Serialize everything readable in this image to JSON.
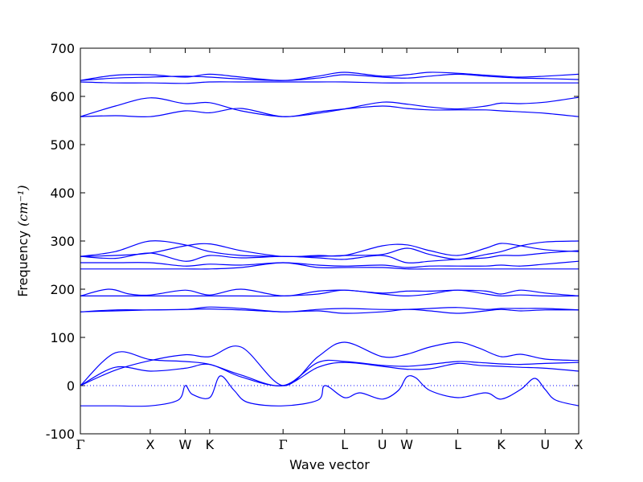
{
  "chart_data": {
    "type": "line",
    "title": "",
    "xlabel": "Wave vector",
    "ylabel": "Frequency",
    "ylabel_unit": "(cm⁻¹)",
    "ylim": [
      -100,
      700
    ],
    "yticks": [
      -100,
      0,
      100,
      200,
      300,
      400,
      500,
      600,
      700
    ],
    "grid": false,
    "legend": "none",
    "xlim": [
      0,
      7.13
    ],
    "xticks": [
      {
        "label": "Γ",
        "x": 0
      },
      {
        "label": "X",
        "x": 1.0
      },
      {
        "label": "W",
        "x": 1.5
      },
      {
        "label": "K",
        "x": 1.85
      },
      {
        "label": "Γ",
        "x": 2.9
      },
      {
        "label": "L",
        "x": 3.78
      },
      {
        "label": "U",
        "x": 4.32
      },
      {
        "label": "W",
        "x": 4.67
      },
      {
        "label": "L",
        "x": 5.4
      },
      {
        "label": "K",
        "x": 6.02
      },
      {
        "label": "U",
        "x": 6.65
      },
      {
        "label": "X",
        "x": 7.13
      }
    ],
    "reference_line": {
      "y": 0,
      "style": "dotted"
    },
    "line_color": "#0000ff",
    "bands": [
      {
        "x": [
          0,
          0.5,
          1.0,
          1.5,
          1.85,
          2.3,
          2.9,
          3.4,
          3.78,
          4.32,
          4.67,
          5.0,
          5.4,
          5.7,
          6.02,
          6.3,
          6.65,
          7.13
        ],
        "y": [
          0,
          38,
          30,
          36,
          44,
          18,
          0,
          38,
          48,
          40,
          34,
          35,
          46,
          42,
          40,
          38,
          36,
          30
        ]
      },
      {
        "x": [
          0,
          0.5,
          1.0,
          1.5,
          1.85,
          2.3,
          2.9,
          3.4,
          3.78,
          4.32,
          4.67,
          5.0,
          5.4,
          5.7,
          6.02,
          6.3,
          6.65,
          7.13
        ],
        "y": [
          0,
          68,
          54,
          50,
          44,
          22,
          0,
          48,
          50,
          42,
          40,
          44,
          50,
          48,
          45,
          44,
          46,
          48
        ]
      },
      {
        "x": [
          0,
          0.5,
          1.0,
          1.5,
          1.85,
          2.3,
          2.9,
          3.4,
          3.78,
          4.32,
          4.67,
          5.0,
          5.4,
          5.7,
          6.02,
          6.3,
          6.65,
          7.13
        ],
        "y": [
          0,
          32,
          52,
          64,
          60,
          80,
          0,
          60,
          90,
          60,
          65,
          80,
          90,
          78,
          60,
          65,
          55,
          52
        ]
      },
      {
        "x": [
          0,
          0.3,
          0.5,
          1.0,
          1.4,
          1.5,
          1.6,
          1.85,
          2.0,
          2.2,
          2.4,
          2.9,
          3.4,
          3.5,
          3.78,
          4.0,
          4.32,
          4.55,
          4.67,
          4.8,
          5.0,
          5.4,
          5.8,
          6.02,
          6.3,
          6.5,
          6.65,
          6.8,
          7.13
        ],
        "y": [
          -42,
          -42,
          -42,
          -42,
          -30,
          0,
          -18,
          -25,
          20,
          -10,
          -35,
          -42,
          -30,
          0,
          -25,
          -15,
          -28,
          -10,
          18,
          16,
          -10,
          -25,
          -15,
          -28,
          -8,
          15,
          -8,
          -30,
          -42
        ]
      },
      {
        "x": [
          0,
          0.5,
          1.0,
          1.5,
          1.85,
          2.3,
          2.9,
          3.4,
          3.78,
          4.32,
          4.67,
          5.0,
          5.4,
          5.8,
          6.02,
          6.3,
          6.65,
          7.13
        ],
        "y": [
          153,
          155,
          157,
          158,
          159,
          157,
          153,
          155,
          150,
          153,
          158,
          155,
          150,
          155,
          158,
          155,
          157,
          157
        ]
      },
      {
        "x": [
          0,
          0.5,
          1.0,
          1.5,
          1.85,
          2.3,
          2.9,
          3.4,
          3.78,
          4.32,
          4.67,
          5.0,
          5.4,
          5.8,
          6.02,
          6.3,
          6.65,
          7.13
        ],
        "y": [
          153,
          157,
          157,
          158,
          163,
          160,
          153,
          158,
          160,
          158,
          158,
          160,
          162,
          158,
          160,
          160,
          160,
          157
        ]
      },
      {
        "x": [
          0,
          0.5,
          1.0,
          1.5,
          1.85,
          2.3,
          2.9,
          3.4,
          3.78,
          4.32,
          4.67,
          5.0,
          5.4,
          5.8,
          6.02,
          6.3,
          6.65,
          7.13
        ],
        "y": [
          186,
          186,
          186,
          186,
          186,
          186,
          186,
          190,
          198,
          190,
          186,
          190,
          198,
          190,
          186,
          188,
          186,
          186
        ]
      },
      {
        "x": [
          0,
          0.4,
          0.7,
          1.0,
          1.5,
          1.85,
          2.3,
          2.9,
          3.4,
          3.78,
          4.32,
          4.67,
          5.0,
          5.4,
          5.8,
          6.02,
          6.3,
          6.65,
          7.13
        ],
        "y": [
          186,
          200,
          190,
          188,
          198,
          188,
          200,
          186,
          196,
          198,
          192,
          196,
          196,
          198,
          196,
          190,
          198,
          192,
          186
        ]
      },
      {
        "x": [
          0,
          0.5,
          1.0,
          1.5,
          1.85,
          2.3,
          2.9,
          3.4,
          3.78,
          4.32,
          4.67,
          5.0,
          5.4,
          5.8,
          6.02,
          6.3,
          6.65,
          7.13
        ],
        "y": [
          242,
          242,
          242,
          242,
          242,
          245,
          255,
          245,
          245,
          245,
          242,
          242,
          242,
          242,
          242,
          242,
          242,
          242
        ]
      },
      {
        "x": [
          0,
          0.5,
          1.0,
          1.5,
          1.85,
          2.3,
          2.9,
          3.4,
          3.78,
          4.32,
          4.67,
          5.0,
          5.4,
          5.8,
          6.02,
          6.3,
          6.65,
          7.13
        ],
        "y": [
          255,
          255,
          255,
          248,
          252,
          250,
          255,
          250,
          248,
          250,
          245,
          248,
          248,
          248,
          250,
          248,
          252,
          258
        ]
      },
      {
        "x": [
          0,
          0.5,
          1.0,
          1.5,
          1.85,
          2.3,
          2.9,
          3.4,
          3.78,
          4.32,
          4.67,
          5.0,
          5.4,
          5.8,
          6.02,
          6.3,
          6.65,
          7.13
        ],
        "y": [
          268,
          270,
          275,
          290,
          294,
          280,
          268,
          270,
          270,
          290,
          292,
          280,
          270,
          285,
          295,
          290,
          282,
          278
        ]
      },
      {
        "x": [
          0,
          0.5,
          1.0,
          1.5,
          1.85,
          2.3,
          2.9,
          3.4,
          3.78,
          4.32,
          4.67,
          5.0,
          5.4,
          5.8,
          6.02,
          6.3,
          6.65,
          7.13
        ],
        "y": [
          268,
          278,
          300,
          292,
          278,
          270,
          268,
          268,
          270,
          272,
          285,
          272,
          262,
          272,
          278,
          290,
          298,
          300
        ]
      },
      {
        "x": [
          0,
          0.5,
          1.0,
          1.5,
          1.85,
          2.3,
          2.9,
          3.4,
          3.78,
          4.32,
          4.67,
          5.0,
          5.4,
          5.8,
          6.02,
          6.3,
          6.65,
          7.13
        ],
        "y": [
          268,
          264,
          275,
          258,
          270,
          265,
          268,
          265,
          262,
          270,
          255,
          258,
          262,
          265,
          270,
          270,
          275,
          280
        ]
      },
      {
        "x": [
          0,
          0.5,
          1.0,
          1.5,
          1.85,
          2.3,
          2.9,
          3.4,
          3.78,
          4.32,
          4.67,
          5.0,
          5.4,
          5.8,
          6.02,
          6.3,
          6.65,
          7.13
        ],
        "y": [
          558,
          560,
          558,
          570,
          566,
          575,
          558,
          568,
          574,
          580,
          575,
          572,
          572,
          572,
          570,
          568,
          565,
          558
        ]
      },
      {
        "x": [
          0,
          0.5,
          1.0,
          1.5,
          1.85,
          2.3,
          2.9,
          3.4,
          3.78,
          4.32,
          4.67,
          5.0,
          5.4,
          5.8,
          6.02,
          6.3,
          6.65,
          7.13
        ],
        "y": [
          558,
          580,
          597,
          585,
          587,
          570,
          558,
          565,
          574,
          588,
          584,
          578,
          574,
          580,
          586,
          585,
          588,
          598
        ]
      },
      {
        "x": [
          0,
          0.5,
          1.0,
          1.5,
          1.85,
          2.3,
          2.9,
          3.4,
          3.78,
          4.32,
          4.67,
          5.0,
          5.4,
          5.8,
          6.02,
          6.3,
          6.65,
          7.13
        ],
        "y": [
          630,
          628,
          628,
          627,
          630,
          630,
          630,
          630,
          630,
          628,
          628,
          628,
          628,
          628,
          628,
          628,
          628,
          628
        ]
      },
      {
        "x": [
          0,
          0.5,
          1.0,
          1.5,
          1.85,
          2.3,
          2.9,
          3.4,
          3.78,
          4.32,
          4.67,
          5.0,
          5.4,
          5.8,
          6.02,
          6.3,
          6.65,
          7.13
        ],
        "y": [
          633,
          638,
          640,
          642,
          640,
          636,
          633,
          638,
          645,
          640,
          638,
          642,
          646,
          642,
          640,
          638,
          637,
          635
        ]
      },
      {
        "x": [
          0,
          0.5,
          1.0,
          1.5,
          1.85,
          2.3,
          2.9,
          3.4,
          3.78,
          4.32,
          4.67,
          5.0,
          5.4,
          5.8,
          6.02,
          6.3,
          6.65,
          7.13
        ],
        "y": [
          633,
          644,
          645,
          640,
          646,
          640,
          633,
          642,
          650,
          642,
          645,
          650,
          648,
          644,
          642,
          640,
          642,
          646
        ]
      }
    ]
  }
}
